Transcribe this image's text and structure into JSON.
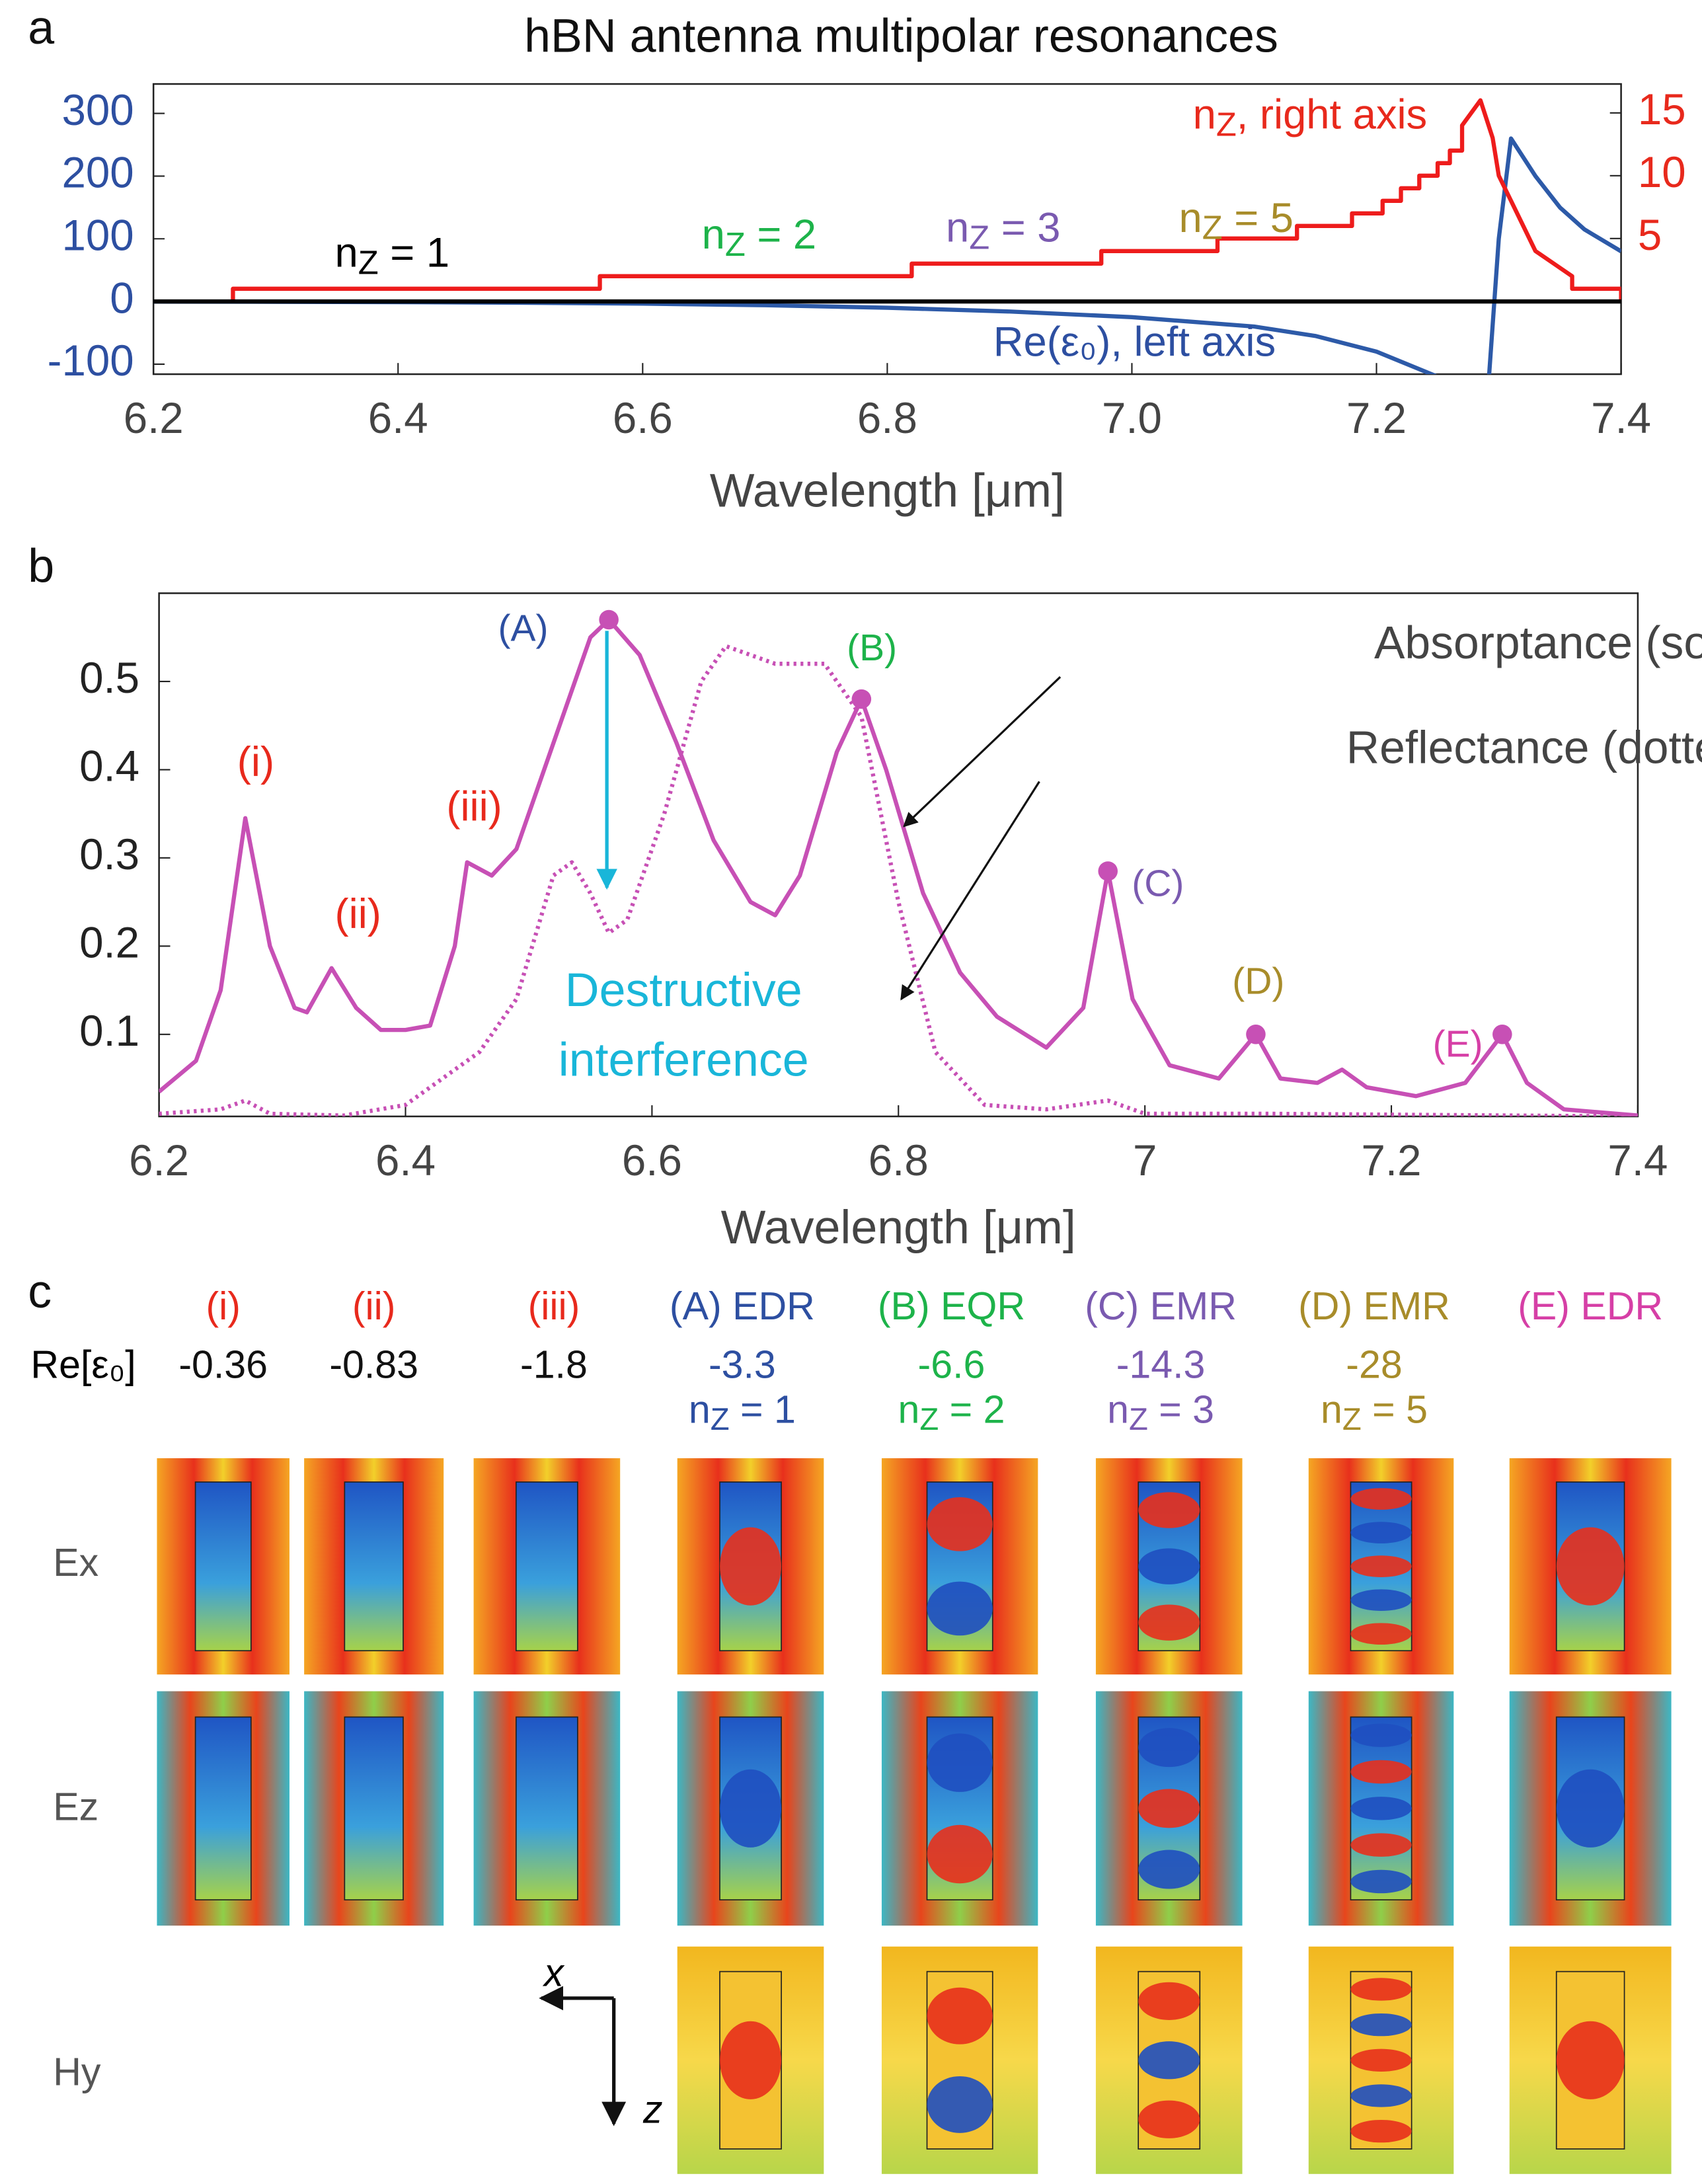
{
  "chart_data": [
    {
      "type": "line",
      "panel": "a",
      "title": "hBN antenna multipolar resonances",
      "xlabel": "Wavelength [μm]",
      "xlim": [
        6.2,
        7.4
      ],
      "xticks": [
        6.2,
        6.4,
        6.6,
        6.8,
        {
          "value": 7,
          "label": "7.0"
        },
        7.2,
        7.4
      ],
      "ylim": [
        -116,
        347
      ],
      "yticks": [
        -100,
        0,
        100,
        200,
        300
      ],
      "y_axis_color": "#2d4fa1",
      "y2lim": [
        -5.8,
        17.3
      ],
      "y2ticks": [
        5,
        10,
        15
      ],
      "y2_axis_color": "#e8291c",
      "reference_line": 0,
      "series": [
        {
          "name": "Re(ε₀)",
          "color": "#2d5aa8",
          "axis": "y",
          "x": [
            6.2,
            6.3,
            6.4,
            6.5,
            6.6,
            6.7,
            6.8,
            6.9,
            7.0,
            7.1,
            7.15,
            7.2,
            7.25,
            7.28,
            7.292,
            7.3,
            7.31,
            7.33,
            7.35,
            7.37,
            7.4
          ],
          "values": [
            -0.2,
            -0.5,
            -1,
            -2,
            -3.5,
            -6,
            -10,
            -16,
            -25,
            -40,
            -55,
            -80,
            -120,
            -400,
            -120,
            100,
            260,
            200,
            150,
            115,
            80
          ]
        },
        {
          "name": "n_z",
          "color": "#ee1c1c",
          "axis": "y2",
          "x": [
            6.265,
            6.265,
            6.565,
            6.565,
            6.82,
            6.82,
            6.975,
            6.975,
            7.07,
            7.07,
            7.135,
            7.135,
            7.18,
            7.18,
            7.205,
            7.205,
            7.22,
            7.22,
            7.235,
            7.235,
            7.25,
            7.25,
            7.26,
            7.26,
            7.27,
            7.27,
            7.285,
            7.295,
            7.3,
            7.31,
            7.32,
            7.33,
            7.345,
            7.36,
            7.36,
            7.4,
            7.4
          ],
          "values": [
            0,
            1,
            1,
            2,
            2,
            3,
            3,
            4,
            4,
            5,
            5,
            6,
            6,
            7,
            7,
            8,
            8,
            9,
            9,
            10,
            10,
            11,
            11,
            12,
            12,
            14,
            16,
            13,
            10,
            8,
            6,
            4,
            3,
            2,
            1,
            1,
            0
          ]
        }
      ],
      "annotations": [
        {
          "text": "n",
          "sub": "Z",
          "rest": " = 1",
          "color": "#000000"
        },
        {
          "text": "n",
          "sub": "Z",
          "rest": " = 2",
          "color": "#1db34a"
        },
        {
          "text": "n",
          "sub": "Z",
          "rest": " = 3",
          "color": "#7a5ab0"
        },
        {
          "text": "n",
          "sub": "Z",
          "rest": " = 5",
          "color": "#a88c2a"
        },
        {
          "text": "n",
          "sub": "Z",
          "rest": ", right axis",
          "color": "#e8291c"
        },
        {
          "text": "Re(ε₀), left axis",
          "color": "#2d4fa1"
        }
      ]
    },
    {
      "type": "line",
      "panel": "b",
      "xlabel": "Wavelength [μm]",
      "xlim": [
        6.2,
        7.4
      ],
      "xticks": [
        6.2,
        6.4,
        6.6,
        6.8,
        7,
        7.2,
        7.4
      ],
      "ylim": [
        0.007,
        0.6
      ],
      "yticks": [
        0.1,
        0.2,
        0.3,
        0.4,
        0.5
      ],
      "y_axis_color": "#222222",
      "series": [
        {
          "name": "Absorptance",
          "color": "#c750b5",
          "axis": "y",
          "dash": "solid",
          "x": [
            6.2,
            6.23,
            6.25,
            6.27,
            6.29,
            6.31,
            6.32,
            6.34,
            6.36,
            6.38,
            6.4,
            6.42,
            6.44,
            6.45,
            6.47,
            6.49,
            6.52,
            6.55,
            6.565,
            6.59,
            6.62,
            6.65,
            6.68,
            6.7,
            6.72,
            6.75,
            6.77,
            6.79,
            6.82,
            6.85,
            6.88,
            6.92,
            6.95,
            6.97,
            6.99,
            7.02,
            7.06,
            7.09,
            7.11,
            7.14,
            7.16,
            7.18,
            7.22,
            7.26,
            7.29,
            7.31,
            7.34,
            7.4
          ],
          "values": [
            0.035,
            0.07,
            0.15,
            0.345,
            0.2,
            0.13,
            0.125,
            0.175,
            0.13,
            0.105,
            0.105,
            0.11,
            0.2,
            0.295,
            0.28,
            0.31,
            0.43,
            0.55,
            0.57,
            0.53,
            0.43,
            0.32,
            0.25,
            0.235,
            0.28,
            0.42,
            0.48,
            0.4,
            0.26,
            0.17,
            0.12,
            0.085,
            0.13,
            0.285,
            0.14,
            0.065,
            0.05,
            0.1,
            0.05,
            0.045,
            0.06,
            0.04,
            0.03,
            0.045,
            0.1,
            0.045,
            0.015,
            0.008
          ]
        },
        {
          "name": "Reflectance",
          "color": "#c750b5",
          "axis": "y",
          "dash": "dotted",
          "x": [
            6.2,
            6.25,
            6.27,
            6.29,
            6.35,
            6.4,
            6.43,
            6.46,
            6.49,
            6.52,
            6.535,
            6.55,
            6.565,
            6.58,
            6.61,
            6.64,
            6.66,
            6.7,
            6.74,
            6.77,
            6.8,
            6.83,
            6.87,
            6.92,
            6.97,
            7.0,
            7.1,
            7.4
          ],
          "values": [
            0.01,
            0.015,
            0.025,
            0.01,
            0.008,
            0.02,
            0.05,
            0.08,
            0.14,
            0.28,
            0.295,
            0.26,
            0.215,
            0.23,
            0.35,
            0.5,
            0.54,
            0.52,
            0.52,
            0.46,
            0.25,
            0.08,
            0.02,
            0.015,
            0.025,
            0.01,
            0.01,
            0.007
          ]
        }
      ],
      "points": [
        {
          "label": "(A)",
          "color": "#2d4fa1",
          "x": 6.565,
          "y": 0.57
        },
        {
          "label": "(B)",
          "color": "#1db34a",
          "x": 6.77,
          "y": 0.48
        },
        {
          "label": "(C)",
          "color": "#7a5ab0",
          "x": 6.97,
          "y": 0.285
        },
        {
          "label": "(D)",
          "color": "#a88c2a",
          "x": 7.09,
          "y": 0.1
        },
        {
          "label": "(E)",
          "color": "#d63fa6",
          "x": 7.29,
          "y": 0.1
        }
      ],
      "annotations": [
        {
          "text": "(i)",
          "color": "#e8291c"
        },
        {
          "text": "(ii)",
          "color": "#e8291c"
        },
        {
          "text": "(iii)",
          "color": "#e8291c"
        },
        {
          "text": "Destructive",
          "color": "#19b6d9"
        },
        {
          "text": "interference",
          "color": "#19b6d9"
        },
        {
          "text": "Absorptance (solid line)",
          "color": "#444444"
        },
        {
          "text": "Reflectance (dotted line)",
          "color": "#444444"
        }
      ]
    }
  ],
  "panel_c": {
    "panel": "c",
    "row_header": "Re[ε₀]",
    "rows": [
      "Ex",
      "Ez",
      "Hy"
    ],
    "axes_labels": [
      "x",
      "z"
    ],
    "columns": [
      {
        "label": "(i)",
        "color": "#e8291c",
        "re_eps": -0.36,
        "value_color": "#111111"
      },
      {
        "label": "(ii)",
        "color": "#e8291c",
        "re_eps": -0.83,
        "value_color": "#111111"
      },
      {
        "label": "(iii)",
        "color": "#e8291c",
        "re_eps": -1.8,
        "value_color": "#111111"
      },
      {
        "label": "(A) EDR",
        "color": "#2d4fa1",
        "re_eps": -3.3,
        "value_color": "#2d4fa1",
        "mode": {
          "text": "n",
          "sub": "Z",
          "rest": " = 1"
        }
      },
      {
        "label": "(B) EQR",
        "color": "#1db34a",
        "re_eps": -6.6,
        "value_color": "#1db34a",
        "mode": {
          "text": "n",
          "sub": "Z",
          "rest": " = 2"
        }
      },
      {
        "label": "(C) EMR",
        "color": "#7a5ab0",
        "re_eps": -14.3,
        "value_color": "#7a5ab0",
        "mode": {
          "text": "n",
          "sub": "Z",
          "rest": " = 3"
        }
      },
      {
        "label": "(D) EMR",
        "color": "#a88c2a",
        "re_eps": -28,
        "value_color": "#a88c2a",
        "mode": {
          "text": "n",
          "sub": "Z",
          "rest": " = 5"
        }
      },
      {
        "label": "(E) EDR",
        "color": "#d63fa6"
      }
    ]
  }
}
